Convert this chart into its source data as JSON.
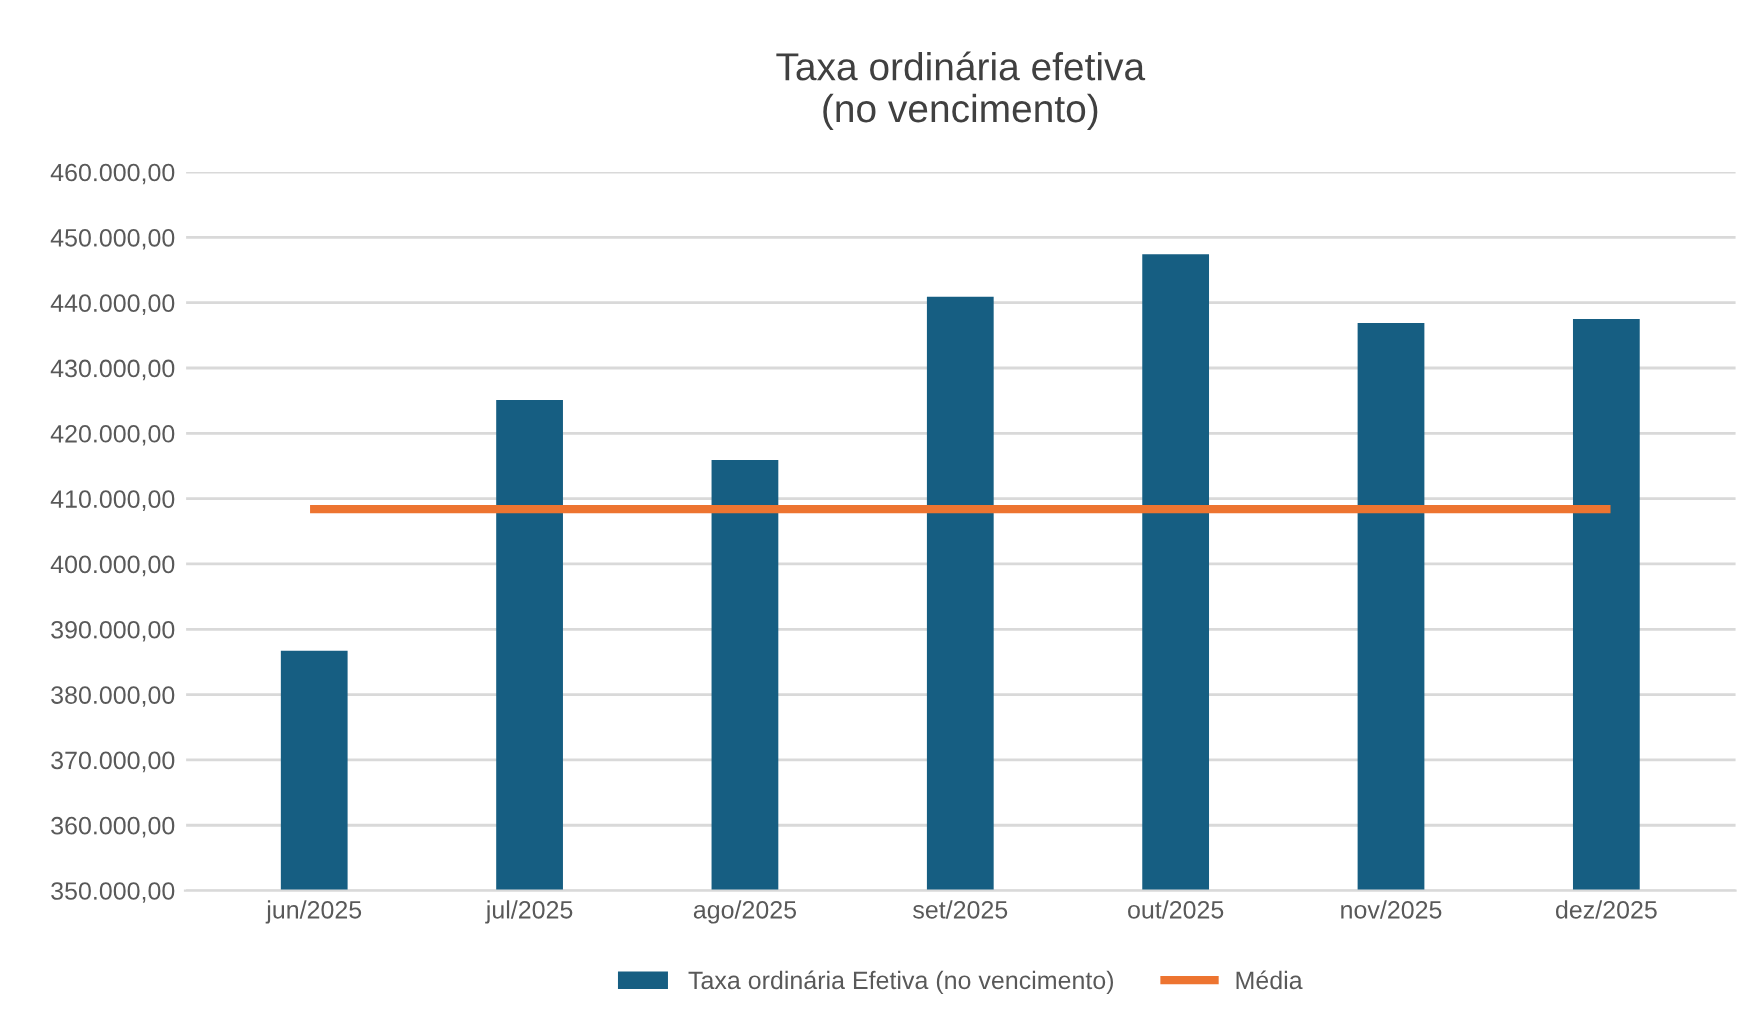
{
  "chart_data": {
    "type": "bar",
    "title": "Taxa ordinária efetiva\n(no vencimento)",
    "categories": [
      "jun/2025",
      "jul/2025",
      "ago/2025",
      "set/2025",
      "out/2025",
      "nov/2025",
      "dez/2025"
    ],
    "series": [
      {
        "name": "Taxa ordinária Efetiva (no vencimento)",
        "color": "#165e82",
        "values": [
          386700,
          425100,
          415900,
          440900,
          447400,
          436900,
          437500
        ]
      },
      {
        "name": "Média",
        "type": "line",
        "color": "#ed7430",
        "values": [
          408400,
          408400,
          408400,
          408400,
          408400,
          408400,
          408400
        ]
      }
    ],
    "ylim": [
      350000,
      460000
    ],
    "yticks": [
      {
        "value": 350000,
        "label": "350.000,00"
      },
      {
        "value": 360000,
        "label": "360.000,00"
      },
      {
        "value": 370000,
        "label": "370.000,00"
      },
      {
        "value": 380000,
        "label": "380.000,00"
      },
      {
        "value": 390000,
        "label": "390.000,00"
      },
      {
        "value": 400000,
        "label": "400.000,00"
      },
      {
        "value": 410000,
        "label": "410.000,00"
      },
      {
        "value": 420000,
        "label": "420.000,00"
      },
      {
        "value": 430000,
        "label": "430.000,00"
      },
      {
        "value": 440000,
        "label": "440.000,00"
      },
      {
        "value": 450000,
        "label": "450.000,00"
      },
      {
        "value": 460000,
        "label": "460.000,00"
      }
    ],
    "grid": "y",
    "legend": "bottom",
    "marker": "none",
    "line_style": "solid"
  }
}
